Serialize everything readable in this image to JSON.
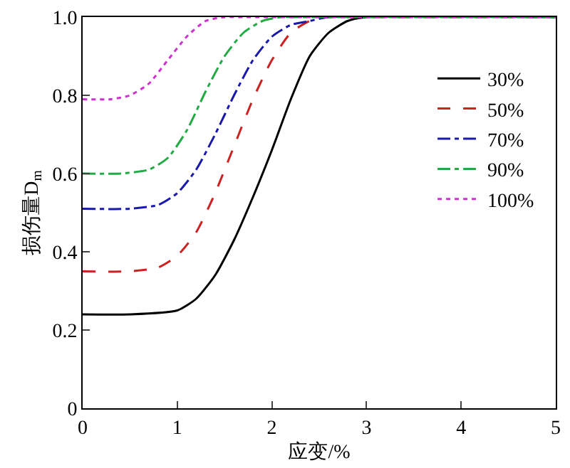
{
  "chart_data": {
    "type": "line",
    "xlabel": "应变/%",
    "ylabel": "损伤量D$_{m}$",
    "xlim": [
      0,
      5
    ],
    "ylim": [
      0,
      1
    ],
    "xticks": [
      0,
      1,
      2,
      3,
      4,
      5
    ],
    "yticks": [
      0,
      0.2,
      0.4,
      0.6,
      0.8,
      {
        "value": 1,
        "label": "1.0"
      }
    ],
    "legend": "top right",
    "marker": "none",
    "series": [
      {
        "name": "30%",
        "color": "#000000",
        "line_style": "solid",
        "x": [
          0,
          0.5,
          1.0,
          1.2,
          1.4,
          1.6,
          1.8,
          2.0,
          2.2,
          2.4,
          2.6,
          2.8,
          3.0,
          5
        ],
        "values": [
          0.24,
          0.24,
          0.25,
          0.28,
          0.34,
          0.43,
          0.54,
          0.66,
          0.79,
          0.9,
          0.96,
          0.99,
          1.0,
          1.0
        ]
      },
      {
        "name": "50%",
        "color": "#cc2222",
        "line_style": "dashed",
        "x": [
          0,
          0.5,
          0.8,
          1.0,
          1.2,
          1.4,
          1.6,
          1.8,
          2.0,
          2.2,
          2.4,
          2.6,
          2.8,
          5
        ],
        "values": [
          0.35,
          0.35,
          0.36,
          0.39,
          0.45,
          0.55,
          0.67,
          0.79,
          0.89,
          0.96,
          0.99,
          1.0,
          1.0,
          1.0
        ]
      },
      {
        "name": "70%",
        "color": "#1a1aaa",
        "line_style": "dashdot",
        "x": [
          0,
          0.5,
          0.8,
          1.0,
          1.2,
          1.4,
          1.6,
          1.8,
          2.0,
          2.2,
          2.4,
          2.6,
          5
        ],
        "values": [
          0.51,
          0.51,
          0.52,
          0.55,
          0.61,
          0.7,
          0.8,
          0.89,
          0.95,
          0.98,
          0.99,
          1.0,
          1.0
        ]
      },
      {
        "name": "90%",
        "color": "#22aa44",
        "line_style": "dashdot",
        "x": [
          0,
          0.4,
          0.7,
          0.9,
          1.1,
          1.3,
          1.5,
          1.7,
          1.9,
          2.1,
          2.3,
          5
        ],
        "values": [
          0.6,
          0.6,
          0.61,
          0.64,
          0.71,
          0.81,
          0.9,
          0.96,
          0.99,
          1.0,
          1.0,
          1.0
        ]
      },
      {
        "name": "100%",
        "color": "#cc33cc",
        "line_style": "dotted",
        "x": [
          0,
          0.3,
          0.5,
          0.7,
          0.9,
          1.1,
          1.3,
          1.5,
          1.7,
          5
        ],
        "values": [
          0.79,
          0.79,
          0.8,
          0.83,
          0.89,
          0.95,
          0.99,
          1.0,
          1.0,
          1.0
        ]
      }
    ]
  }
}
